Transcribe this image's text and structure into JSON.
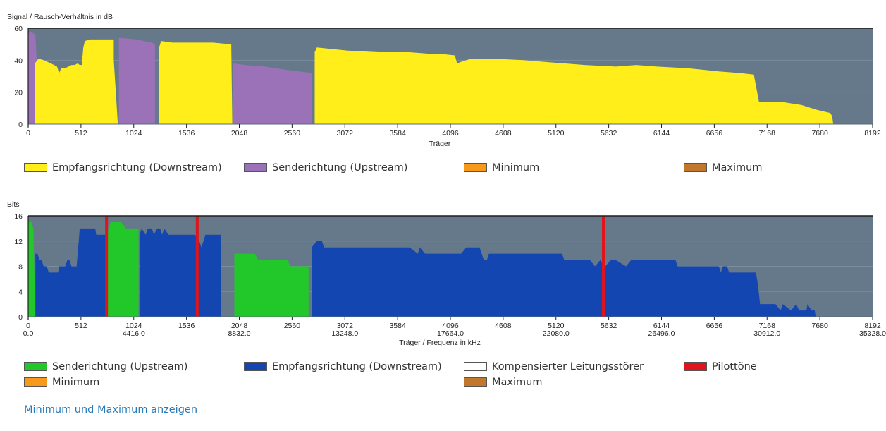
{
  "colors": {
    "plot_bg": "#66798a",
    "grid": "#7a8d9c",
    "downstream_snr": "#ffee1a",
    "upstream_snr": "#9b72b8",
    "upstream_bits": "#22c72a",
    "downstream_bits": "#1446b2",
    "pilot": "#e0141b",
    "minimum": "#f79a1b",
    "maximum": "#c2782c",
    "compensated": "#ffffff",
    "link": "#2a7ab8"
  },
  "snr_chart": {
    "ylabel": "Signal / Rausch-Verhältnis in dB",
    "xlabel": "Träger",
    "yticks": [
      "0",
      "20",
      "40",
      "60"
    ],
    "xticks": [
      "0",
      "512",
      "1024",
      "1536",
      "2048",
      "2560",
      "3072",
      "3584",
      "4096",
      "4608",
      "5120",
      "5632",
      "6144",
      "6656",
      "7168",
      "7680",
      "8192"
    ],
    "legend": [
      {
        "label": "Empfangsrichtung (Downstream)",
        "color": "#ffee1a"
      },
      {
        "label": "Senderichtung (Upstream)",
        "color": "#9b72b8"
      },
      {
        "label": "Minimum",
        "color": "#f79a1b"
      },
      {
        "label": "Maximum",
        "color": "#c2782c"
      }
    ]
  },
  "bits_chart": {
    "ylabel": "Bits",
    "xlabel": "Träger / Frequenz in kHz",
    "yticks": [
      "0",
      "4",
      "8",
      "12",
      "16"
    ],
    "xticks": [
      "0",
      "512",
      "1024",
      "1536",
      "2048",
      "2560",
      "3072",
      "3584",
      "4096",
      "4608",
      "5120",
      "5632",
      "6144",
      "6656",
      "7168",
      "7680",
      "8192"
    ],
    "freq_ticks": [
      {
        "carrier": 0,
        "label": "0.0"
      },
      {
        "carrier": 1024,
        "label": "4416.0"
      },
      {
        "carrier": 2048,
        "label": "8832.0"
      },
      {
        "carrier": 3072,
        "label": "13248.0"
      },
      {
        "carrier": 4096,
        "label": "17664.0"
      },
      {
        "carrier": 5120,
        "label": "22080.0"
      },
      {
        "carrier": 6144,
        "label": "26496.0"
      },
      {
        "carrier": 7168,
        "label": "30912.0"
      },
      {
        "carrier": 8192,
        "label": "35328.0"
      }
    ],
    "legend": [
      {
        "label": "Senderichtung (Upstream)",
        "color": "#22c72a"
      },
      {
        "label": "Empfangsrichtung (Downstream)",
        "color": "#1446b2"
      },
      {
        "label": "Kompensierter Leitungsstörer",
        "color": "#ffffff"
      },
      {
        "label": "Pilottöne",
        "color": "#e0141b"
      },
      {
        "label": "Minimum",
        "color": "#f79a1b"
      },
      {
        "label": "Maximum",
        "color": "#c2782c"
      }
    ]
  },
  "link_text": "Minimum und Maximum anzeigen",
  "chart_data": [
    {
      "type": "area",
      "ylabel": "Signal / Rausch-Verhältnis in dB",
      "xlabel": "Träger",
      "xlim": [
        0,
        8192
      ],
      "ylim": [
        0,
        60
      ],
      "grid": true,
      "legend_position": "bottom",
      "series": [
        {
          "name": "Senderichtung (Upstream)",
          "segments": [
            [
              [
                0,
                0
              ],
              [
                0,
                56
              ],
              [
                20,
                58
              ],
              [
                70,
                56
              ],
              [
                110,
                0
              ]
            ],
            [
              [
                880,
                0
              ],
              [
                880,
                54
              ],
              [
                1050,
                53
              ],
              [
                1200,
                51
              ],
              [
                1230,
                50
              ],
              [
                1230,
                0
              ]
            ],
            [
              [
                1990,
                0
              ],
              [
                1990,
                38
              ],
              [
                2100,
                37
              ],
              [
                2300,
                36
              ],
              [
                2500,
                34
              ],
              [
                2750,
                32
              ],
              [
                2750,
                0
              ]
            ]
          ]
        },
        {
          "name": "Empfangsrichtung (Downstream)",
          "segments": [
            [
              [
                65,
                0
              ],
              [
                65,
                38
              ],
              [
                100,
                41
              ],
              [
                150,
                40
              ],
              [
                220,
                38
              ],
              [
                280,
                36
              ],
              [
                300,
                32
              ],
              [
                320,
                35
              ],
              [
                360,
                35
              ],
              [
                390,
                36
              ],
              [
                420,
                37
              ],
              [
                450,
                37
              ],
              [
                480,
                38
              ],
              [
                500,
                37
              ],
              [
                520,
                37
              ],
              [
                535,
                48
              ],
              [
                550,
                52
              ],
              [
                600,
                53
              ],
              [
                700,
                53
              ],
              [
                790,
                53
              ],
              [
                830,
                53
              ],
              [
                830,
                40
              ],
              [
                870,
                0
              ]
            ],
            [
              [
                1270,
                0
              ],
              [
                1270,
                48
              ],
              [
                1290,
                52
              ],
              [
                1400,
                51
              ],
              [
                1600,
                51
              ],
              [
                1790,
                51
              ],
              [
                1970,
                50
              ],
              [
                1980,
                0
              ]
            ],
            [
              [
                2780,
                0
              ],
              [
                2780,
                45
              ],
              [
                2800,
                48
              ],
              [
                2950,
                47
              ],
              [
                3100,
                46
              ],
              [
                3400,
                45
              ],
              [
                3700,
                45
              ],
              [
                3900,
                44
              ],
              [
                4000,
                44
              ],
              [
                4140,
                43
              ],
              [
                4160,
                38
              ],
              [
                4200,
                39
              ],
              [
                4300,
                41
              ],
              [
                4500,
                41
              ],
              [
                4800,
                40
              ],
              [
                5000,
                39
              ],
              [
                5200,
                38
              ],
              [
                5400,
                37
              ],
              [
                5700,
                36
              ],
              [
                5900,
                37
              ],
              [
                6100,
                36
              ],
              [
                6400,
                35
              ],
              [
                6700,
                33
              ],
              [
                6900,
                32
              ],
              [
                7040,
                31
              ],
              [
                7060,
                24
              ],
              [
                7090,
                14
              ],
              [
                7300,
                14
              ],
              [
                7400,
                13
              ],
              [
                7500,
                12
              ],
              [
                7650,
                9
              ],
              [
                7780,
                7
              ],
              [
                7800,
                5
              ],
              [
                7810,
                0
              ]
            ]
          ]
        }
      ]
    },
    {
      "type": "area",
      "ylabel": "Bits",
      "xlabel": "Träger / Frequenz in kHz",
      "xlim": [
        0,
        8192
      ],
      "ylim": [
        0,
        16
      ],
      "grid": true,
      "legend_position": "bottom",
      "series": [
        {
          "name": "Senderichtung (Upstream)",
          "segments": [
            [
              [
                0,
                0
              ],
              [
                0,
                15
              ],
              [
                30,
                15
              ],
              [
                50,
                14
              ],
              [
                70,
                0
              ]
            ],
            [
              [
                760,
                0
              ],
              [
                760,
                13
              ],
              [
                800,
                15
              ],
              [
                900,
                15
              ],
              [
                950,
                14
              ],
              [
                1040,
                14
              ],
              [
                1070,
                14
              ],
              [
                1070,
                0
              ]
            ],
            [
              [
                2000,
                0
              ],
              [
                2000,
                10
              ],
              [
                2200,
                10
              ],
              [
                2230,
                9
              ],
              [
                2400,
                9
              ],
              [
                2520,
                9
              ],
              [
                2540,
                8
              ],
              [
                2720,
                8
              ],
              [
                2720,
                0
              ]
            ]
          ]
        },
        {
          "name": "Empfangsrichtung (Downstream)",
          "segments": [
            [
              [
                70,
                0
              ],
              [
                70,
                10
              ],
              [
                90,
                10
              ],
              [
                110,
                9
              ],
              [
                130,
                9
              ],
              [
                150,
                8
              ],
              [
                180,
                8
              ],
              [
                200,
                7
              ],
              [
                250,
                7
              ],
              [
                290,
                7
              ],
              [
                300,
                8
              ],
              [
                330,
                8
              ],
              [
                360,
                8
              ],
              [
                380,
                9
              ],
              [
                400,
                9
              ],
              [
                420,
                8
              ],
              [
                460,
                8
              ],
              [
                470,
                8
              ],
              [
                490,
                12
              ],
              [
                500,
                14
              ],
              [
                560,
                14
              ],
              [
                620,
                14
              ],
              [
                650,
                14
              ],
              [
                660,
                13
              ],
              [
                730,
                13
              ],
              [
                760,
                13
              ],
              [
                760,
                0
              ]
            ],
            [
              [
                1080,
                0
              ],
              [
                1080,
                13
              ],
              [
                1100,
                14
              ],
              [
                1140,
                13
              ],
              [
                1160,
                14
              ],
              [
                1200,
                14
              ],
              [
                1220,
                13
              ],
              [
                1250,
                14
              ],
              [
                1280,
                14
              ],
              [
                1300,
                13
              ],
              [
                1320,
                14
              ],
              [
                1360,
                13
              ],
              [
                1420,
                13
              ],
              [
                1520,
                13
              ],
              [
                1620,
                13
              ],
              [
                1660,
                12
              ],
              [
                1680,
                11
              ],
              [
                1720,
                13
              ],
              [
                1820,
                13
              ],
              [
                1870,
                13
              ],
              [
                1870,
                0
              ]
            ],
            [
              [
                2750,
                0
              ],
              [
                2750,
                11
              ],
              [
                2800,
                12
              ],
              [
                2850,
                12
              ],
              [
                2870,
                11
              ],
              [
                3000,
                11
              ],
              [
                3100,
                11
              ],
              [
                3300,
                11
              ],
              [
                3480,
                11
              ],
              [
                3520,
                11
              ],
              [
                3600,
                11
              ],
              [
                3700,
                11
              ],
              [
                3780,
                10
              ],
              [
                3800,
                11
              ],
              [
                3850,
                10
              ],
              [
                4000,
                10
              ],
              [
                4150,
                10
              ],
              [
                4200,
                10
              ],
              [
                4250,
                11
              ],
              [
                4380,
                11
              ],
              [
                4420,
                9
              ],
              [
                4450,
                9
              ],
              [
                4470,
                10
              ],
              [
                4600,
                10
              ],
              [
                4800,
                10
              ],
              [
                5000,
                10
              ],
              [
                5180,
                10
              ],
              [
                5200,
                9
              ],
              [
                5450,
                9
              ],
              [
                5500,
                8
              ],
              [
                5550,
                9
              ],
              [
                5600,
                8
              ],
              [
                5650,
                9
              ],
              [
                5700,
                9
              ],
              [
                5800,
                8
              ],
              [
                5850,
                9
              ],
              [
                5900,
                9
              ],
              [
                6000,
                9
              ],
              [
                6280,
                9
              ],
              [
                6300,
                8
              ],
              [
                6500,
                8
              ],
              [
                6700,
                8
              ],
              [
                6720,
                7
              ],
              [
                6740,
                8
              ],
              [
                6780,
                8
              ],
              [
                6800,
                7
              ],
              [
                7000,
                7
              ],
              [
                7060,
                7
              ],
              [
                7080,
                5
              ],
              [
                7100,
                2
              ],
              [
                7250,
                2
              ],
              [
                7300,
                1
              ],
              [
                7320,
                2
              ],
              [
                7400,
                1
              ],
              [
                7450,
                2
              ],
              [
                7480,
                1
              ],
              [
                7550,
                1
              ],
              [
                7560,
                2
              ],
              [
                7600,
                1
              ],
              [
                7630,
                1
              ],
              [
                7640,
                0
              ]
            ]
          ]
        },
        {
          "name": "Pilottöne",
          "carriers": [
            760,
            1640,
            5580
          ]
        }
      ]
    }
  ]
}
